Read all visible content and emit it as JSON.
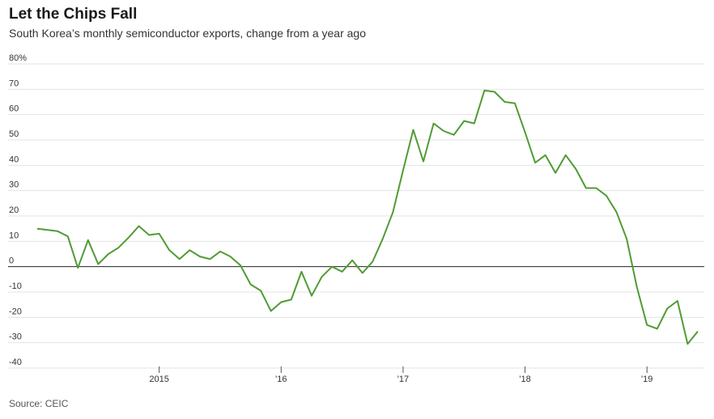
{
  "header": {
    "title": "Let the Chips Fall",
    "subtitle": "South Korea’s monthly semiconductor exports, change from a year ago"
  },
  "footer": {
    "source": "Source: CEIC"
  },
  "chart_data": {
    "type": "line",
    "title": "Let the Chips Fall",
    "subtitle": "South Korea’s monthly semiconductor exports, change from a year ago",
    "xlabel": "",
    "ylabel": "",
    "ylim": [
      -40,
      80
    ],
    "yticks": [
      {
        "value": 80,
        "label": "80%"
      },
      {
        "value": 70,
        "label": "70"
      },
      {
        "value": 60,
        "label": "60"
      },
      {
        "value": 50,
        "label": "50"
      },
      {
        "value": 40,
        "label": "40"
      },
      {
        "value": 30,
        "label": "30"
      },
      {
        "value": 20,
        "label": "20"
      },
      {
        "value": 10,
        "label": "10"
      },
      {
        "value": 0,
        "label": "0"
      },
      {
        "value": -10,
        "label": "-10"
      },
      {
        "value": -20,
        "label": "-20"
      },
      {
        "value": -30,
        "label": "-30"
      },
      {
        "value": -40,
        "label": "-40"
      }
    ],
    "xlim": [
      "2014-01",
      "2019-06"
    ],
    "xticks": [
      {
        "value": "2015-01",
        "label": "2015"
      },
      {
        "value": "2016-01",
        "label": "'16"
      },
      {
        "value": "2017-01",
        "label": "'17"
      },
      {
        "value": "2018-01",
        "label": "'18"
      },
      {
        "value": "2019-01",
        "label": "'19"
      }
    ],
    "grid": true,
    "color": "#4f9c34",
    "series": [
      {
        "name": "Semiconductor exports, change from a year ago (%)",
        "x": [
          "2014-01",
          "2014-02",
          "2014-03",
          "2014-04",
          "2014-05",
          "2014-06",
          "2014-07",
          "2014-08",
          "2014-09",
          "2014-10",
          "2014-11",
          "2014-12",
          "2015-01",
          "2015-02",
          "2015-03",
          "2015-04",
          "2015-05",
          "2015-06",
          "2015-07",
          "2015-08",
          "2015-09",
          "2015-10",
          "2015-11",
          "2015-12",
          "2016-01",
          "2016-02",
          "2016-03",
          "2016-04",
          "2016-05",
          "2016-06",
          "2016-07",
          "2016-08",
          "2016-09",
          "2016-10",
          "2016-11",
          "2016-12",
          "2017-01",
          "2017-02",
          "2017-03",
          "2017-04",
          "2017-05",
          "2017-06",
          "2017-07",
          "2017-08",
          "2017-09",
          "2017-10",
          "2017-11",
          "2017-12",
          "2018-01",
          "2018-02",
          "2018-03",
          "2018-04",
          "2018-05",
          "2018-06",
          "2018-07",
          "2018-08",
          "2018-09",
          "2018-10",
          "2018-11",
          "2018-12",
          "2019-01",
          "2019-02",
          "2019-03",
          "2019-04",
          "2019-05",
          "2019-06"
        ],
        "values": [
          15,
          14.5,
          14,
          12,
          -0.5,
          10.5,
          1,
          5,
          7.5,
          11.5,
          16,
          12.5,
          13,
          6.5,
          3,
          6.5,
          4,
          3,
          6,
          4,
          0.5,
          -7,
          -9.5,
          -17.5,
          -14,
          -13,
          -2,
          -11.5,
          -4,
          0,
          -2,
          2.5,
          -2.5,
          2,
          11,
          21.5,
          38,
          54,
          41.5,
          56.5,
          53.5,
          52,
          57.5,
          56.5,
          69.5,
          69,
          65,
          64.5,
          53,
          41,
          44,
          37,
          44,
          38.5,
          31,
          31,
          28,
          21.5,
          11,
          -8,
          -23,
          -24.5,
          -16.5,
          -13.5,
          -30.5,
          -25.5
        ]
      }
    ]
  }
}
